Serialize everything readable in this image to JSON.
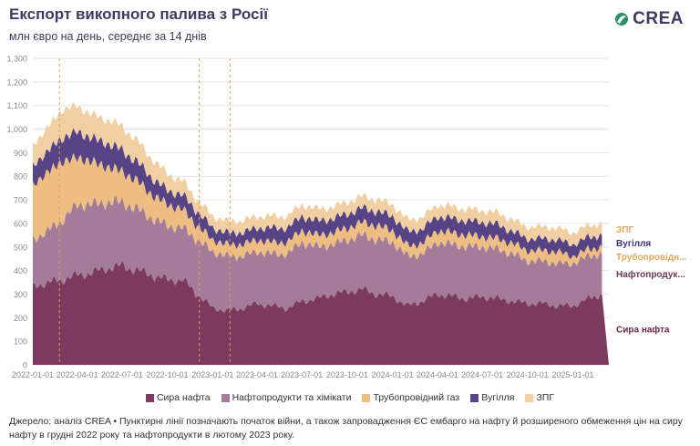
{
  "title": "Експорт викопного палива з Росії",
  "subtitle": "млн євро на день, середнє за 14 днів",
  "logo": {
    "text": "CREA"
  },
  "source": "Джерело: аналіз CREA • Пунктирні лінії позначають початок війни, а також запровадження ЄС ембарго на нафту й розширеного обмеження цін на сиру нафту в грудні 2022 року та нафтопродукти в лютому 2023 року.",
  "chart_data": {
    "type": "area",
    "stacked": true,
    "ylim": [
      0,
      1300
    ],
    "yticks": [
      "0",
      "100",
      "200",
      "300",
      "400",
      "500",
      "600",
      "700",
      "800",
      "900",
      "1,000",
      "1,100",
      "1,200",
      "1,300"
    ],
    "xticks": [
      "2022-01-01",
      "2022-04-01",
      "2022-07-01",
      "2022-10-01",
      "2023-01-01",
      "2023-04-01",
      "2023-07-01",
      "2023-10-01",
      "2024-01-01",
      "2024-04-01",
      "2024-07-01",
      "2024-10-01",
      "2025-01-01"
    ],
    "xlim": [
      "2022-01-01",
      "2025-03-15"
    ],
    "grid": true,
    "dashed_lines": [
      "2022-02-24",
      "2022-12-05",
      "2023-02-05"
    ],
    "x": [
      "2022-01-01",
      "2022-02-01",
      "2022-03-01",
      "2022-04-01",
      "2022-05-01",
      "2022-06-01",
      "2022-07-01",
      "2022-08-01",
      "2022-09-01",
      "2022-10-01",
      "2022-11-01",
      "2022-12-01",
      "2023-01-01",
      "2023-02-01",
      "2023-03-01",
      "2023-04-01",
      "2023-05-01",
      "2023-06-01",
      "2023-07-01",
      "2023-08-01",
      "2023-09-01",
      "2023-10-01",
      "2023-11-01",
      "2023-12-01",
      "2024-01-01",
      "2024-02-01",
      "2024-03-01",
      "2024-04-01",
      "2024-05-01",
      "2024-06-01",
      "2024-07-01",
      "2024-08-01",
      "2024-09-01",
      "2024-10-01",
      "2024-11-01",
      "2024-12-01",
      "2025-01-01",
      "2025-02-01",
      "2025-03-01"
    ],
    "series": [
      {
        "name": "Сира нафта",
        "color": "#7b3a5e",
        "values": [
          330,
          350,
          360,
          380,
          390,
          410,
          420,
          400,
          380,
          360,
          360,
          300,
          240,
          230,
          240,
          260,
          250,
          240,
          270,
          280,
          300,
          310,
          320,
          300,
          290,
          250,
          270,
          300,
          290,
          280,
          290,
          280,
          270,
          260,
          260,
          250,
          250,
          280,
          300
        ]
      },
      {
        "name": "Нафтопродукти та хімікати",
        "color": "#a47c9a",
        "values": [
          200,
          220,
          250,
          300,
          290,
          280,
          270,
          260,
          240,
          230,
          220,
          230,
          240,
          230,
          220,
          220,
          220,
          230,
          250,
          220,
          210,
          220,
          230,
          230,
          230,
          210,
          200,
          220,
          220,
          220,
          210,
          210,
          200,
          180,
          180,
          180,
          180,
          180,
          170
        ]
      },
      {
        "name": "Трубопровідний газ",
        "color": "#edbd82",
        "values": [
          230,
          250,
          250,
          200,
          180,
          150,
          130,
          120,
          100,
          90,
          80,
          60,
          50,
          50,
          50,
          50,
          50,
          50,
          50,
          50,
          50,
          50,
          55,
          60,
          50,
          45,
          45,
          50,
          50,
          50,
          45,
          45,
          45,
          45,
          45,
          50,
          30,
          30,
          30
        ]
      },
      {
        "name": "Вугілля",
        "color": "#574486",
        "values": [
          80,
          90,
          100,
          110,
          100,
          100,
          90,
          80,
          70,
          60,
          60,
          60,
          50,
          50,
          50,
          50,
          60,
          60,
          60,
          60,
          60,
          60,
          60,
          60,
          60,
          60,
          60,
          60,
          60,
          60,
          60,
          60,
          50,
          50,
          50,
          50,
          50,
          50,
          50
        ]
      },
      {
        "name": "ЗПГ",
        "color": "#f1cfa3",
        "values": [
          90,
          100,
          120,
          110,
          100,
          100,
          100,
          90,
          80,
          70,
          60,
          50,
          50,
          50,
          50,
          50,
          50,
          50,
          50,
          50,
          50,
          50,
          50,
          50,
          50,
          50,
          50,
          50,
          50,
          50,
          50,
          50,
          50,
          50,
          50,
          50,
          50,
          50,
          50
        ]
      }
    ],
    "end_labels": [
      {
        "series": "ЗПГ",
        "text": "ЗПГ",
        "color": "#e3a75d"
      },
      {
        "series": "Вугілля",
        "text": "Вугілля",
        "color": "#3f2f7a"
      },
      {
        "series": "Трубопровідний газ",
        "text": "Трубопровідн...",
        "color": "#e3a75d"
      },
      {
        "series": "Нафтопродукти та хімікати",
        "text": "Нафтопродук...",
        "color": "#6b3a58"
      },
      {
        "series": "Сира нафта",
        "text": "Сира нафта",
        "color": "#6b2a4e"
      }
    ]
  },
  "legend": [
    {
      "label": "Сира нафта",
      "color": "#7b3a5e"
    },
    {
      "label": "Нафтопродукти та хімікати",
      "color": "#a47c9a"
    },
    {
      "label": "Трубопровідний газ",
      "color": "#edbd82"
    },
    {
      "label": "Вугілля",
      "color": "#574486"
    },
    {
      "label": "ЗПГ",
      "color": "#f1cfa3"
    }
  ]
}
